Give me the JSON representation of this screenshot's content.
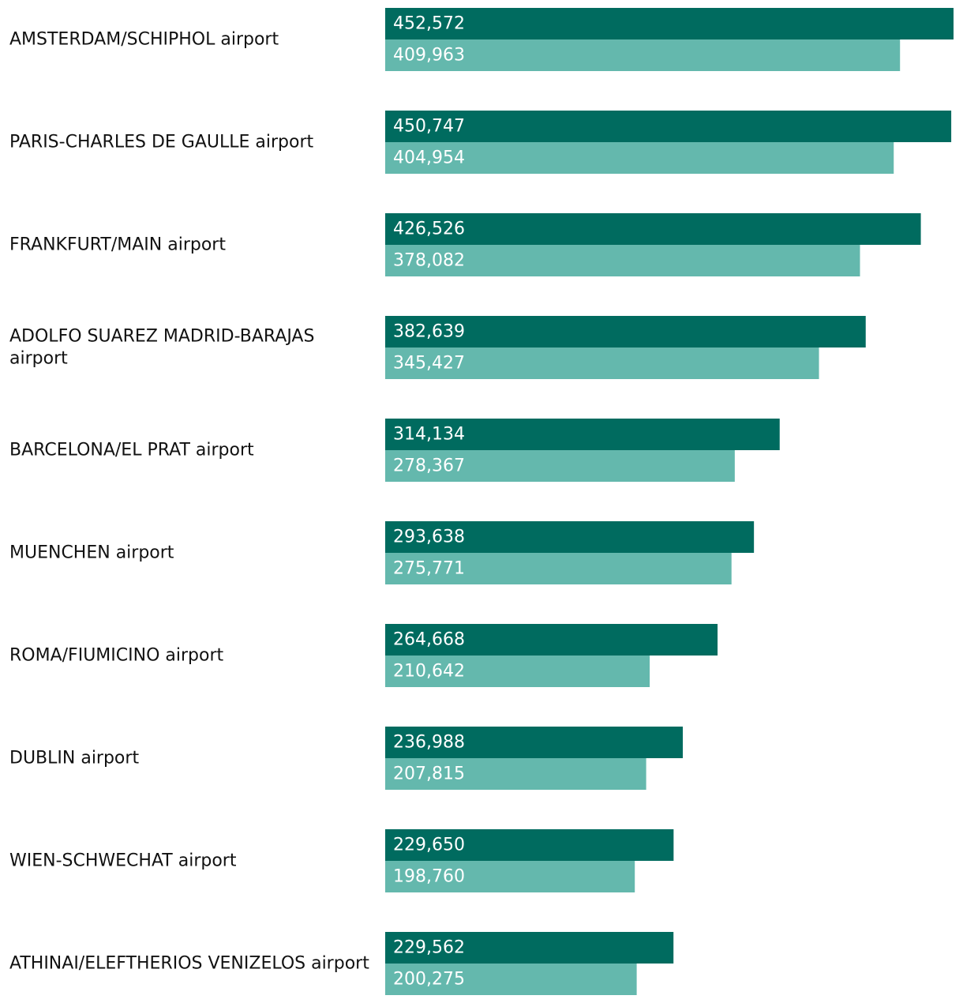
{
  "colors": {
    "series_2019": "#006b5f",
    "series_2020": "#64b8ad",
    "label_text": "#111111",
    "value_text": "#ffffff"
  },
  "chart_data": {
    "type": "bar",
    "orientation": "horizontal",
    "title": "",
    "xlabel": "",
    "ylabel": "",
    "grid": false,
    "categories": [
      [
        "AMSTERDAM/SCHIPHOL airport"
      ],
      [
        "PARIS-CHARLES DE GAULLE airport"
      ],
      [
        "FRANKFURT/MAIN airport"
      ],
      [
        "ADOLFO SUAREZ MADRID-BARAJAS",
        "airport"
      ],
      [
        "BARCELONA/EL PRAT airport"
      ],
      [
        "MUENCHEN airport"
      ],
      [
        "ROMA/FIUMICINO airport"
      ],
      [
        "DUBLIN airport"
      ],
      [
        "WIEN-SCHWECHAT airport"
      ],
      [
        "ATHINAI/ELEFTHERIOS VENIZELOS airport"
      ]
    ],
    "series": [
      {
        "name": "series-dark",
        "color": "#006b5f",
        "values": [
          452572,
          450747,
          426526,
          382639,
          314134,
          293638,
          264668,
          236988,
          229650,
          229562
        ],
        "labels": [
          "452,572",
          "450,747",
          "426,526",
          "382,639",
          "314,134",
          "293,638",
          "264,668",
          "236,988",
          "229,650",
          "229,562"
        ]
      },
      {
        "name": "series-light",
        "color": "#64b8ad",
        "values": [
          409963,
          404954,
          378082,
          345427,
          278367,
          275771,
          210642,
          207815,
          198760,
          200275
        ],
        "labels": [
          "409,963",
          "404,954",
          "378,082",
          "345,427",
          "278,367",
          "275,771",
          "210,642",
          "207,815",
          "198,760",
          "200,275"
        ]
      }
    ],
    "xlim": [
      0,
      452572
    ]
  }
}
